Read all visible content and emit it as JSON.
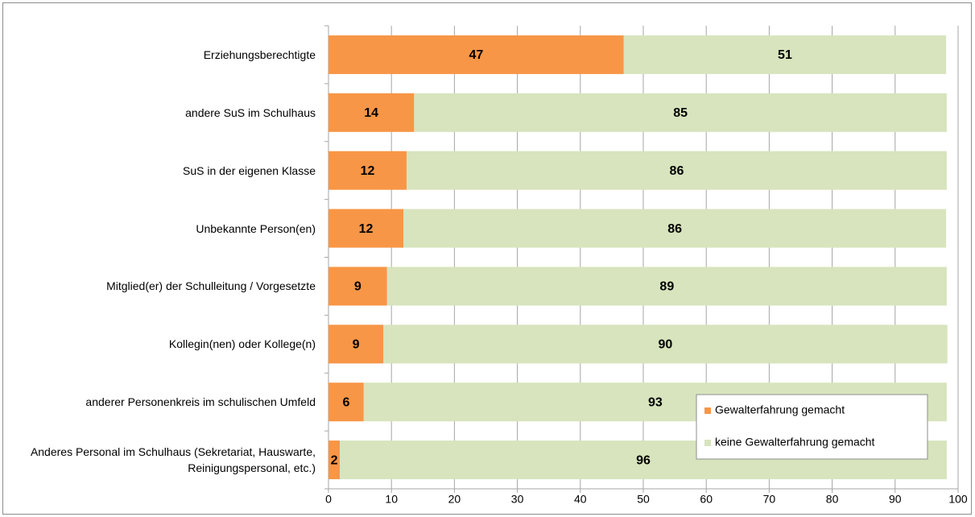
{
  "chart_data": {
    "type": "stacked_barh",
    "categories": [
      "Erziehungsberechtigte",
      "andere SuS im Schulhaus",
      "SuS in der eigenen Klasse",
      "Unbekannte Person(en)",
      "Mitglied(er) der Schulleitung / Vorgesetzte",
      "Kollegin(nen) oder Kollege(n)",
      "anderer Personenkreis im schulischen Umfeld",
      "Anderes Personal im Schulhaus (Sekretariat, Hauswarte, Reinigungspersonal, etc.)"
    ],
    "series": [
      {
        "name": "Gewalterfahrung gemacht",
        "color": "#f79646",
        "values": [
          46.9,
          13.6,
          12.4,
          11.9,
          9.3,
          8.7,
          5.6,
          1.8
        ],
        "value_labels": [
          "47",
          "14",
          "12",
          "12",
          "9",
          "9",
          "6",
          "2"
        ]
      },
      {
        "name": "keine Gewalterfahrung gemacht",
        "color": "#d7e4bd",
        "values": [
          51.2,
          84.6,
          85.8,
          86.2,
          88.9,
          89.6,
          92.6,
          96.4
        ],
        "value_labels": [
          "51",
          "85",
          "86",
          "86",
          "89",
          "90",
          "93",
          "96"
        ]
      }
    ],
    "xlim": [
      0,
      100
    ],
    "xticks": [
      0,
      10,
      20,
      30,
      40,
      50,
      60,
      70,
      80,
      90,
      100
    ],
    "grid": true,
    "legend": "lower right"
  }
}
